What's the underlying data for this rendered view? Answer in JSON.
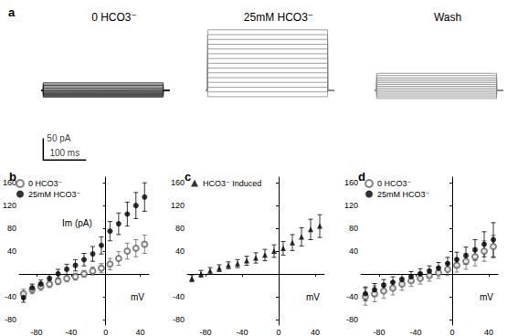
{
  "chart_data": [
    {
      "type": "line",
      "panel": "a",
      "title": "0 HCO3⁻",
      "color": "#222222",
      "tick_labels": false,
      "x": [
        0,
        5,
        5,
        285,
        285,
        300
      ],
      "xlim": [
        0,
        320
      ],
      "ylim": [
        -170,
        150
      ],
      "scale_bar": {
        "x": [
          5,
          105
        ],
        "y": [
          -160,
          -110
        ],
        "x_label": "100 ms",
        "y_label": "50 pA"
      },
      "series": [
        {
          "values": [
            0,
            0,
            -15,
            -15,
            0,
            0
          ]
        },
        {
          "values": [
            0,
            0,
            -13,
            -13,
            0,
            0
          ]
        },
        {
          "values": [
            0,
            0,
            -11,
            -11,
            0,
            0
          ]
        },
        {
          "values": [
            0,
            0,
            -9,
            -9,
            0,
            0
          ]
        },
        {
          "values": [
            0,
            0,
            -7,
            -7,
            0,
            0
          ]
        },
        {
          "values": [
            0,
            0,
            -5,
            -5,
            0,
            0
          ]
        },
        {
          "values": [
            0,
            0,
            -3,
            -3,
            0,
            0
          ]
        },
        {
          "values": [
            0,
            0,
            -1,
            -1,
            0,
            0
          ]
        },
        {
          "values": [
            0,
            0,
            1,
            1,
            0,
            0
          ]
        },
        {
          "values": [
            0,
            0,
            3,
            3,
            0,
            0
          ]
        },
        {
          "values": [
            0,
            0,
            6,
            6,
            0,
            0
          ]
        },
        {
          "values": [
            0,
            0,
            9,
            9,
            0,
            0
          ]
        },
        {
          "values": [
            0,
            0,
            12,
            12,
            0,
            0
          ]
        },
        {
          "values": [
            0,
            0,
            15,
            15,
            0,
            0
          ]
        },
        {
          "values": [
            0,
            0,
            18,
            18,
            0,
            0
          ]
        }
      ]
    },
    {
      "type": "line",
      "title": "25mM HCO3⁻",
      "color": "#888888",
      "tick_labels": false,
      "x": [
        0,
        5,
        5,
        285,
        285,
        300
      ],
      "xlim": [
        0,
        320
      ],
      "ylim": [
        -170,
        150
      ],
      "series": [
        {
          "values": [
            0,
            0,
            -14,
            -14,
            0,
            0
          ]
        },
        {
          "values": [
            0,
            0,
            -3,
            -3,
            0,
            0
          ]
        },
        {
          "values": [
            0,
            0,
            8,
            8,
            0,
            0
          ]
        },
        {
          "values": [
            0,
            0,
            19,
            19,
            0,
            0
          ]
        },
        {
          "values": [
            0,
            0,
            30,
            30,
            0,
            0
          ]
        },
        {
          "values": [
            0,
            0,
            41,
            41,
            0,
            0
          ]
        },
        {
          "values": [
            0,
            0,
            52,
            52,
            0,
            0
          ]
        },
        {
          "values": [
            0,
            0,
            63,
            63,
            0,
            0
          ]
        },
        {
          "values": [
            0,
            0,
            74,
            74,
            0,
            0
          ]
        },
        {
          "values": [
            0,
            0,
            85,
            85,
            0,
            0
          ]
        },
        {
          "values": [
            0,
            0,
            96,
            96,
            0,
            0
          ]
        },
        {
          "values": [
            0,
            0,
            107,
            107,
            0,
            0
          ]
        },
        {
          "values": [
            0,
            0,
            118,
            118,
            0,
            0
          ]
        },
        {
          "values": [
            0,
            0,
            129,
            129,
            0,
            0
          ]
        },
        {
          "values": [
            0,
            0,
            140,
            140,
            0,
            0
          ]
        }
      ]
    },
    {
      "type": "line",
      "title": "Wash",
      "color": "#888888",
      "tick_labels": false,
      "x": [
        0,
        5,
        5,
        285,
        285,
        300
      ],
      "xlim": [
        0,
        320
      ],
      "ylim": [
        -170,
        150
      ],
      "series": [
        {
          "values": [
            0,
            0,
            -18,
            -18,
            0,
            0
          ]
        },
        {
          "values": [
            0,
            0,
            -14,
            -14,
            0,
            0
          ]
        },
        {
          "values": [
            0,
            0,
            -10,
            -10,
            0,
            0
          ]
        },
        {
          "values": [
            0,
            0,
            -6,
            -6,
            0,
            0
          ]
        },
        {
          "values": [
            0,
            0,
            -2,
            -2,
            0,
            0
          ]
        },
        {
          "values": [
            0,
            0,
            2,
            2,
            0,
            0
          ]
        },
        {
          "values": [
            0,
            0,
            6,
            6,
            0,
            0
          ]
        },
        {
          "values": [
            0,
            0,
            10,
            10,
            0,
            0
          ]
        },
        {
          "values": [
            0,
            0,
            14,
            14,
            0,
            0
          ]
        },
        {
          "values": [
            0,
            0,
            18,
            18,
            0,
            0
          ]
        },
        {
          "values": [
            0,
            0,
            22,
            22,
            0,
            0
          ]
        },
        {
          "values": [
            0,
            0,
            26,
            26,
            0,
            0
          ]
        },
        {
          "values": [
            0,
            0,
            30,
            30,
            0,
            0
          ]
        },
        {
          "values": [
            0,
            0,
            35,
            35,
            0,
            0
          ]
        },
        {
          "values": [
            0,
            0,
            40,
            40,
            0,
            0
          ]
        }
      ]
    },
    {
      "type": "scatter",
      "panel": "b",
      "xlabel": "mV",
      "ylabel": "Im (pA)",
      "legend": "upper left",
      "x": [
        -95,
        -85,
        -75,
        -65,
        -55,
        -45,
        -35,
        -25,
        -15,
        -5,
        5,
        15,
        25,
        35,
        45
      ],
      "xlim": [
        -100,
        50
      ],
      "xticks": [
        -80,
        -40,
        0,
        40
      ],
      "ylim": [
        -90,
        170
      ],
      "yticks": [
        -80,
        -40,
        40,
        80,
        120,
        160
      ],
      "series": [
        {
          "name": "0 HCO3⁻",
          "color": "#666666",
          "marker": "open_circle",
          "values": [
            -35,
            -28,
            -22,
            -18,
            -13,
            -8,
            -5,
            0,
            5,
            10,
            17,
            27,
            40,
            45,
            52
          ],
          "errors": [
            8,
            7,
            7,
            6,
            6,
            6,
            6,
            6,
            7,
            8,
            10,
            12,
            14,
            15,
            16
          ]
        },
        {
          "name": "25mM HCO3⁻",
          "color": "#000000",
          "marker": "circle",
          "values": [
            -42,
            -25,
            -18,
            -8,
            0,
            8,
            15,
            25,
            35,
            50,
            75,
            88,
            105,
            120,
            135
          ],
          "errors": [
            8,
            7,
            7,
            7,
            8,
            9,
            10,
            11,
            13,
            15,
            17,
            19,
            21,
            23,
            25
          ]
        }
      ]
    },
    {
      "type": "scatter",
      "panel": "c",
      "xlabel": "mV",
      "legend": "upper left",
      "x": [
        -95,
        -85,
        -75,
        -65,
        -55,
        -45,
        -35,
        -25,
        -15,
        -5,
        5,
        15,
        25,
        35,
        45
      ],
      "xlim": [
        -100,
        50
      ],
      "xticks": [
        -80,
        -40,
        0,
        40
      ],
      "ylim": [
        -90,
        170
      ],
      "yticks": [
        -80,
        -40,
        40,
        80,
        120,
        160
      ],
      "series": [
        {
          "name": "HCO3⁻ Induced",
          "color": "#000000",
          "marker": "triangle",
          "values": [
            -8,
            0,
            5,
            10,
            15,
            18,
            23,
            28,
            33,
            40,
            45,
            55,
            65,
            78,
            84
          ],
          "errors": [
            6,
            6,
            6,
            6,
            6,
            7,
            8,
            9,
            10,
            11,
            12,
            14,
            16,
            18,
            20
          ]
        }
      ]
    },
    {
      "type": "scatter",
      "panel": "d",
      "xlabel": "mV",
      "legend": "upper left",
      "x": [
        -95,
        -85,
        -75,
        -65,
        -55,
        -45,
        -35,
        -25,
        -15,
        -5,
        5,
        15,
        25,
        35,
        45
      ],
      "xlim": [
        -100,
        50
      ],
      "xticks": [
        -80,
        -40,
        0,
        40
      ],
      "ylim": [
        -90,
        170
      ],
      "yticks": [
        -80,
        -40,
        40,
        80,
        120,
        160
      ],
      "series": [
        {
          "name": "0 HCO3⁻",
          "color": "#666666",
          "marker": "open_circle",
          "values": [
            -40,
            -35,
            -30,
            -25,
            -18,
            -12,
            -8,
            -3,
            2,
            8,
            15,
            22,
            30,
            40,
            48
          ],
          "errors": [
            15,
            14,
            13,
            12,
            11,
            10,
            10,
            10,
            10,
            11,
            12,
            14,
            16,
            18,
            20
          ]
        },
        {
          "name": "25mM HCO3⁻",
          "color": "#000000",
          "marker": "circle",
          "values": [
            -35,
            -28,
            -20,
            -15,
            -10,
            -5,
            0,
            5,
            10,
            18,
            25,
            32,
            42,
            52,
            60
          ],
          "errors": [
            12,
            11,
            10,
            10,
            9,
            9,
            9,
            9,
            10,
            11,
            13,
            15,
            18,
            22,
            30
          ]
        }
      ]
    }
  ]
}
